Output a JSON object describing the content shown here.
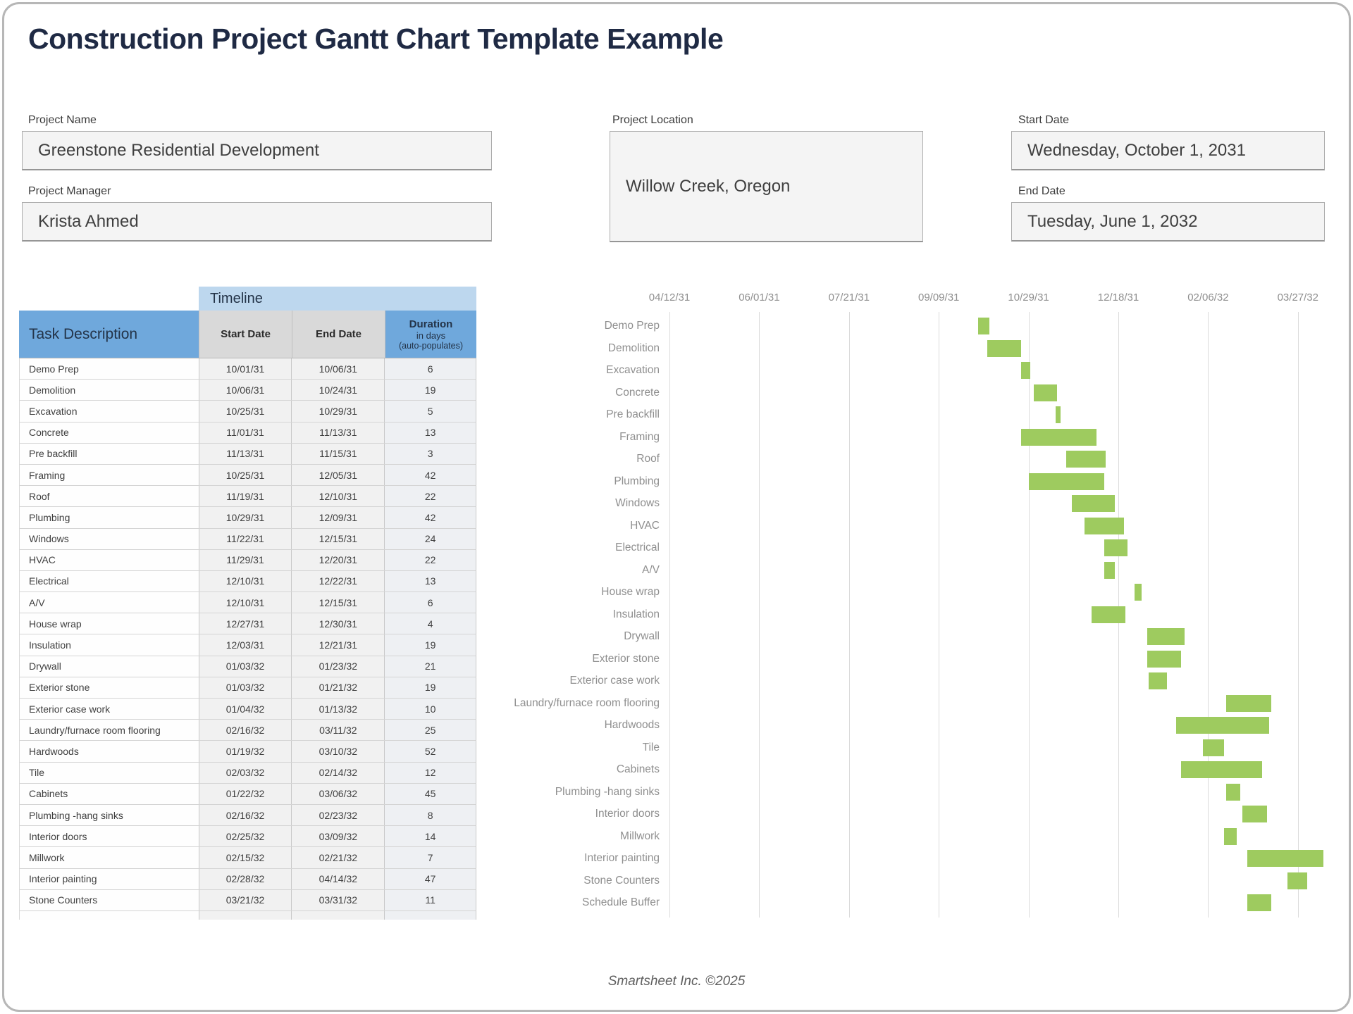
{
  "title": "Construction Project Gantt Chart Template Example",
  "form": {
    "project_name": {
      "label": "Project Name",
      "value": "Greenstone Residential Development"
    },
    "project_manager": {
      "label": "Project Manager",
      "value": "Krista Ahmed"
    },
    "project_location": {
      "label": "Project Location",
      "value": "Willow Creek, Oregon"
    },
    "start_date": {
      "label": "Start Date",
      "value": "Wednesday, October 1, 2031"
    },
    "end_date": {
      "label": "End Date",
      "value": "Tuesday, June 1, 2032"
    }
  },
  "table": {
    "timeline_header": "Timeline",
    "columns": {
      "task": "Task Description",
      "start": "Start Date",
      "end": "End Date",
      "duration_line1": "Duration",
      "duration_line2": "in days",
      "duration_line3": "(auto-populates)"
    },
    "rows": [
      {
        "task": "Demo Prep",
        "start": "10/01/31",
        "end": "10/06/31",
        "duration": "6"
      },
      {
        "task": "Demolition",
        "start": "10/06/31",
        "end": "10/24/31",
        "duration": "19"
      },
      {
        "task": "Excavation",
        "start": "10/25/31",
        "end": "10/29/31",
        "duration": "5"
      },
      {
        "task": "Concrete",
        "start": "11/01/31",
        "end": "11/13/31",
        "duration": "13"
      },
      {
        "task": "Pre backfill",
        "start": "11/13/31",
        "end": "11/15/31",
        "duration": "3"
      },
      {
        "task": "Framing",
        "start": "10/25/31",
        "end": "12/05/31",
        "duration": "42"
      },
      {
        "task": "Roof",
        "start": "11/19/31",
        "end": "12/10/31",
        "duration": "22"
      },
      {
        "task": "Plumbing",
        "start": "10/29/31",
        "end": "12/09/31",
        "duration": "42"
      },
      {
        "task": "Windows",
        "start": "11/22/31",
        "end": "12/15/31",
        "duration": "24"
      },
      {
        "task": "HVAC",
        "start": "11/29/31",
        "end": "12/20/31",
        "duration": "22"
      },
      {
        "task": "Electrical",
        "start": "12/10/31",
        "end": "12/22/31",
        "duration": "13"
      },
      {
        "task": "A/V",
        "start": "12/10/31",
        "end": "12/15/31",
        "duration": "6"
      },
      {
        "task": "House wrap",
        "start": "12/27/31",
        "end": "12/30/31",
        "duration": "4"
      },
      {
        "task": "Insulation",
        "start": "12/03/31",
        "end": "12/21/31",
        "duration": "19"
      },
      {
        "task": "Drywall",
        "start": "01/03/32",
        "end": "01/23/32",
        "duration": "21"
      },
      {
        "task": "Exterior stone",
        "start": "01/03/32",
        "end": "01/21/32",
        "duration": "19"
      },
      {
        "task": "Exterior case work",
        "start": "01/04/32",
        "end": "01/13/32",
        "duration": "10"
      },
      {
        "task": "Laundry/furnace room flooring",
        "start": "02/16/32",
        "end": "03/11/32",
        "duration": "25"
      },
      {
        "task": "Hardwoods",
        "start": "01/19/32",
        "end": "03/10/32",
        "duration": "52"
      },
      {
        "task": "Tile",
        "start": "02/03/32",
        "end": "02/14/32",
        "duration": "12"
      },
      {
        "task": "Cabinets",
        "start": "01/22/32",
        "end": "03/06/32",
        "duration": "45"
      },
      {
        "task": "Plumbing -hang sinks",
        "start": "02/16/32",
        "end": "02/23/32",
        "duration": "8"
      },
      {
        "task": "Interior doors",
        "start": "02/25/32",
        "end": "03/09/32",
        "duration": "14"
      },
      {
        "task": "Millwork",
        "start": "02/15/32",
        "end": "02/21/32",
        "duration": "7"
      },
      {
        "task": "Interior painting",
        "start": "02/28/32",
        "end": "04/14/32",
        "duration": "47"
      },
      {
        "task": "Stone Counters",
        "start": "03/21/32",
        "end": "03/31/32",
        "duration": "11"
      }
    ]
  },
  "chart_data": {
    "type": "bar",
    "subtype": "gantt",
    "axis_tick_dates": [
      "04/12/31",
      "06/01/31",
      "07/21/31",
      "09/09/31",
      "10/29/31",
      "12/18/31",
      "02/06/32",
      "03/27/32"
    ],
    "axis_tick_interval_days": 50,
    "grid": "vertical-on",
    "legend": "none",
    "tasks": [
      {
        "name": "Demo Prep",
        "start": "10/01/31",
        "end": "10/06/31"
      },
      {
        "name": "Demolition",
        "start": "10/06/31",
        "end": "10/24/31"
      },
      {
        "name": "Excavation",
        "start": "10/25/31",
        "end": "10/29/31"
      },
      {
        "name": "Concrete",
        "start": "11/01/31",
        "end": "11/13/31"
      },
      {
        "name": "Pre backfill",
        "start": "11/13/31",
        "end": "11/15/31"
      },
      {
        "name": "Framing",
        "start": "10/25/31",
        "end": "12/05/31"
      },
      {
        "name": "Roof",
        "start": "11/19/31",
        "end": "12/10/31"
      },
      {
        "name": "Plumbing",
        "start": "10/29/31",
        "end": "12/09/31"
      },
      {
        "name": "Windows",
        "start": "11/22/31",
        "end": "12/15/31"
      },
      {
        "name": "HVAC",
        "start": "11/29/31",
        "end": "12/20/31"
      },
      {
        "name": "Electrical",
        "start": "12/10/31",
        "end": "12/22/31"
      },
      {
        "name": "A/V",
        "start": "12/10/31",
        "end": "12/15/31"
      },
      {
        "name": "House wrap",
        "start": "12/27/31",
        "end": "12/30/31"
      },
      {
        "name": "Insulation",
        "start": "12/03/31",
        "end": "12/21/31"
      },
      {
        "name": "Drywall",
        "start": "01/03/32",
        "end": "01/23/32"
      },
      {
        "name": "Exterior stone",
        "start": "01/03/32",
        "end": "01/21/32"
      },
      {
        "name": "Exterior case work",
        "start": "01/04/32",
        "end": "01/13/32"
      },
      {
        "name": "Laundry/furnace room flooring",
        "start": "02/16/32",
        "end": "03/11/32"
      },
      {
        "name": "Hardwoods",
        "start": "01/19/32",
        "end": "03/10/32"
      },
      {
        "name": "Tile",
        "start": "02/03/32",
        "end": "02/14/32"
      },
      {
        "name": "Cabinets",
        "start": "01/22/32",
        "end": "03/06/32"
      },
      {
        "name": "Plumbing -hang sinks",
        "start": "02/16/32",
        "end": "02/23/32"
      },
      {
        "name": "Interior doors",
        "start": "02/25/32",
        "end": "03/09/32"
      },
      {
        "name": "Millwork",
        "start": "02/15/32",
        "end": "02/21/32"
      },
      {
        "name": "Interior painting",
        "start": "02/28/32",
        "end": "04/14/32"
      },
      {
        "name": "Stone Counters",
        "start": "03/21/32",
        "end": "03/31/32"
      },
      {
        "name": "Schedule Buffer",
        "start": "02/28/32",
        "end": "03/11/32"
      }
    ]
  },
  "footer": {
    "credit": "Smartsheet Inc. ©2025"
  },
  "colors": {
    "title_navy": "#1f2a44",
    "header_blue": "#6fa8dc",
    "timeline_lightblue": "#bdd7ee",
    "header_gray": "#d9d9d9",
    "bar_green": "#9ecb5f",
    "gantt_text_gray": "#8f8f8f"
  }
}
